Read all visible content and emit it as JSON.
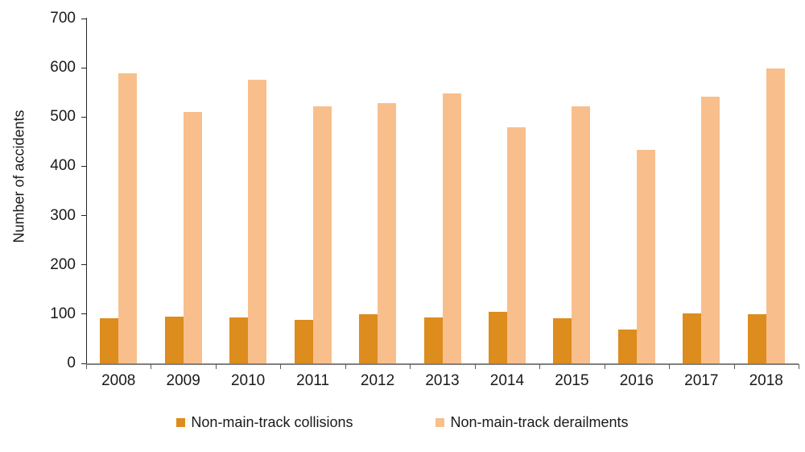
{
  "chart_data": {
    "type": "bar",
    "title": "",
    "xlabel": "",
    "ylabel": "Number of accidents",
    "ylim": [
      0,
      700
    ],
    "y_ticks": [
      0,
      100,
      200,
      300,
      400,
      500,
      600,
      700
    ],
    "grid": false,
    "legend_position": "bottom",
    "categories": [
      "2008",
      "2009",
      "2010",
      "2011",
      "2012",
      "2013",
      "2014",
      "2015",
      "2016",
      "2017",
      "2018"
    ],
    "series": [
      {
        "name": "Non-main-track collisions",
        "color": "#DD8C1E",
        "values": [
          92,
          95,
          93,
          89,
          100,
          93,
          105,
          92,
          69,
          102,
          100
        ]
      },
      {
        "name": "Non-main-track derailments",
        "color": "#F8BF8C",
        "values": [
          588,
          510,
          575,
          522,
          529,
          548,
          480,
          522,
          434,
          541,
          599
        ]
      }
    ]
  },
  "colors": {
    "y_axis": "#262626",
    "x_axis": "#808080",
    "tick": "#595959",
    "text": "#1a1a1a",
    "background": "#ffffff"
  }
}
